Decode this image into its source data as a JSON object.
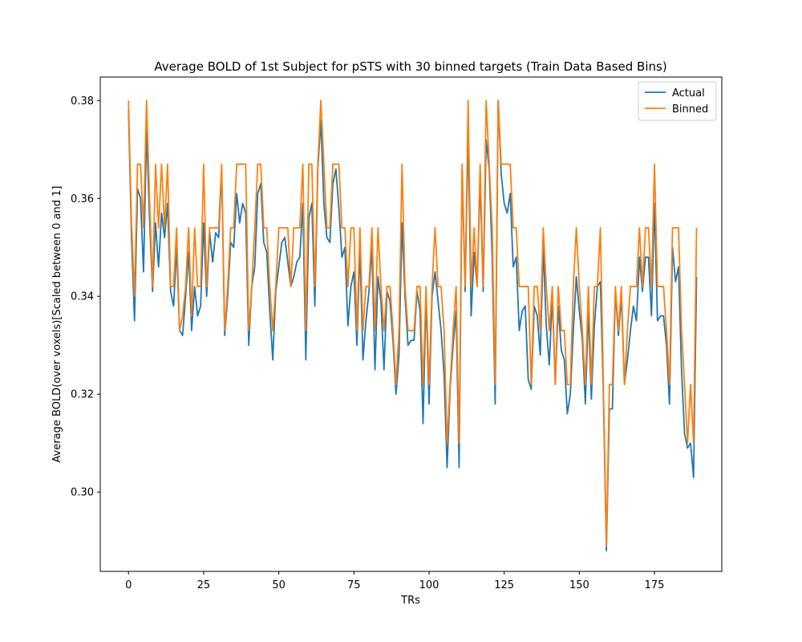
{
  "chart_data": {
    "type": "line",
    "title": "Average BOLD of 1st Subject for pSTS with 30 binned targets (Train Data Based Bins)",
    "xlabel": "TRs",
    "ylabel": "Average BOLD(over voxels)[Scaled between 0 and 1]",
    "xlim": [
      -9.4,
      197.4
    ],
    "ylim": [
      0.2838,
      0.3848
    ],
    "xticks": [
      0,
      25,
      50,
      75,
      100,
      125,
      150,
      175
    ],
    "xtick_labels": [
      "0",
      "25",
      "50",
      "75",
      "100",
      "125",
      "150",
      "175"
    ],
    "yticks": [
      0.3,
      0.32,
      0.34,
      0.36,
      0.38
    ],
    "ytick_labels": [
      "0.30",
      "0.32",
      "0.34",
      "0.36",
      "0.38"
    ],
    "grid": false,
    "legend_position": "top-right",
    "series": [
      {
        "name": "Actual",
        "color": "#1f77b4",
        "values": [
          0.378,
          0.352,
          0.335,
          0.362,
          0.36,
          0.345,
          0.374,
          0.356,
          0.341,
          0.355,
          0.346,
          0.357,
          0.352,
          0.359,
          0.341,
          0.338,
          0.35,
          0.333,
          0.332,
          0.34,
          0.349,
          0.333,
          0.342,
          0.336,
          0.338,
          0.355,
          0.34,
          0.353,
          0.347,
          0.353,
          0.352,
          0.366,
          0.332,
          0.34,
          0.351,
          0.35,
          0.361,
          0.355,
          0.359,
          0.357,
          0.33,
          0.342,
          0.346,
          0.361,
          0.363,
          0.351,
          0.349,
          0.337,
          0.327,
          0.341,
          0.346,
          0.351,
          0.352,
          0.347,
          0.342,
          0.344,
          0.347,
          0.348,
          0.359,
          0.327,
          0.356,
          0.359,
          0.338,
          0.366,
          0.376,
          0.359,
          0.352,
          0.351,
          0.363,
          0.366,
          0.358,
          0.348,
          0.35,
          0.334,
          0.342,
          0.345,
          0.33,
          0.35,
          0.327,
          0.335,
          0.341,
          0.35,
          0.325,
          0.344,
          0.339,
          0.325,
          0.341,
          0.339,
          0.331,
          0.32,
          0.328,
          0.355,
          0.34,
          0.33,
          0.331,
          0.331,
          0.341,
          0.337,
          0.314,
          0.34,
          0.318,
          0.34,
          0.345,
          0.339,
          0.333,
          0.324,
          0.305,
          0.321,
          0.33,
          0.337,
          0.305,
          0.366,
          0.341,
          0.374,
          0.336,
          0.349,
          0.342,
          0.364,
          0.341,
          0.372,
          0.366,
          0.348,
          0.318,
          0.38,
          0.365,
          0.359,
          0.357,
          0.361,
          0.346,
          0.348,
          0.333,
          0.337,
          0.338,
          0.323,
          0.321,
          0.338,
          0.336,
          0.328,
          0.35,
          0.334,
          0.326,
          0.34,
          0.322,
          0.338,
          0.329,
          0.327,
          0.316,
          0.32,
          0.333,
          0.344,
          0.337,
          0.331,
          0.318,
          0.337,
          0.319,
          0.334,
          0.342,
          0.343,
          0.32,
          0.288,
          0.317,
          0.317,
          0.341,
          0.332,
          0.34,
          0.322,
          0.327,
          0.333,
          0.338,
          0.335,
          0.348,
          0.341,
          0.348,
          0.348,
          0.336,
          0.359,
          0.335,
          0.336,
          0.336,
          0.33,
          0.318,
          0.35,
          0.343,
          0.346,
          0.325,
          0.312,
          0.309,
          0.31,
          0.303,
          0.344
        ]
      },
      {
        "name": "Binned",
        "color": "#ff7f0e",
        "values": [
          0.38,
          0.355,
          0.34,
          0.367,
          0.367,
          0.354,
          0.38,
          0.36,
          0.342,
          0.367,
          0.354,
          0.367,
          0.354,
          0.367,
          0.342,
          0.342,
          0.354,
          0.333,
          0.336,
          0.342,
          0.354,
          0.336,
          0.354,
          0.342,
          0.342,
          0.367,
          0.342,
          0.354,
          0.354,
          0.354,
          0.354,
          0.367,
          0.333,
          0.342,
          0.354,
          0.354,
          0.367,
          0.367,
          0.367,
          0.367,
          0.333,
          0.342,
          0.354,
          0.367,
          0.367,
          0.354,
          0.354,
          0.342,
          0.333,
          0.342,
          0.354,
          0.354,
          0.354,
          0.354,
          0.342,
          0.354,
          0.354,
          0.354,
          0.367,
          0.333,
          0.367,
          0.367,
          0.342,
          0.367,
          0.38,
          0.367,
          0.354,
          0.354,
          0.367,
          0.367,
          0.367,
          0.354,
          0.354,
          0.342,
          0.354,
          0.354,
          0.333,
          0.354,
          0.333,
          0.342,
          0.342,
          0.354,
          0.333,
          0.354,
          0.342,
          0.333,
          0.342,
          0.342,
          0.333,
          0.322,
          0.333,
          0.367,
          0.342,
          0.333,
          0.333,
          0.333,
          0.342,
          0.342,
          0.322,
          0.342,
          0.322,
          0.342,
          0.354,
          0.342,
          0.342,
          0.333,
          0.31,
          0.322,
          0.333,
          0.342,
          0.31,
          0.367,
          0.342,
          0.38,
          0.342,
          0.354,
          0.342,
          0.367,
          0.342,
          0.38,
          0.367,
          0.354,
          0.322,
          0.38,
          0.367,
          0.367,
          0.367,
          0.367,
          0.354,
          0.354,
          0.342,
          0.342,
          0.342,
          0.342,
          0.322,
          0.342,
          0.342,
          0.333,
          0.354,
          0.342,
          0.333,
          0.342,
          0.322,
          0.342,
          0.333,
          0.333,
          0.322,
          0.322,
          0.342,
          0.354,
          0.342,
          0.333,
          0.322,
          0.342,
          0.322,
          0.342,
          0.342,
          0.354,
          0.322,
          0.289,
          0.322,
          0.322,
          0.342,
          0.333,
          0.342,
          0.322,
          0.333,
          0.342,
          0.342,
          0.342,
          0.354,
          0.342,
          0.354,
          0.354,
          0.342,
          0.367,
          0.342,
          0.342,
          0.342,
          0.333,
          0.322,
          0.354,
          0.354,
          0.354,
          0.333,
          0.322,
          0.31,
          0.322,
          0.31,
          0.354
        ]
      }
    ]
  }
}
